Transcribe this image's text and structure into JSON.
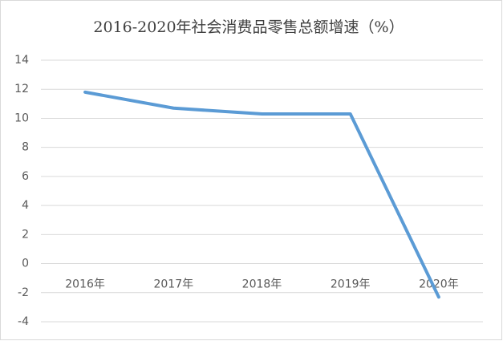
{
  "chart_data": {
    "type": "line",
    "title": "2016-2020年社会消费品零售总额增速（%）",
    "categories": [
      "2016年",
      "2017年",
      "2018年",
      "2019年",
      "2020年"
    ],
    "series": [
      {
        "name": "增速",
        "color": "#5b9bd5",
        "values": [
          11.8,
          10.7,
          10.3,
          10.3,
          -2.3
        ]
      }
    ],
    "ylim": [
      -4,
      14
    ],
    "yticks": [
      -4,
      -2,
      0,
      2,
      4,
      6,
      8,
      10,
      12,
      14
    ],
    "grid": true
  }
}
